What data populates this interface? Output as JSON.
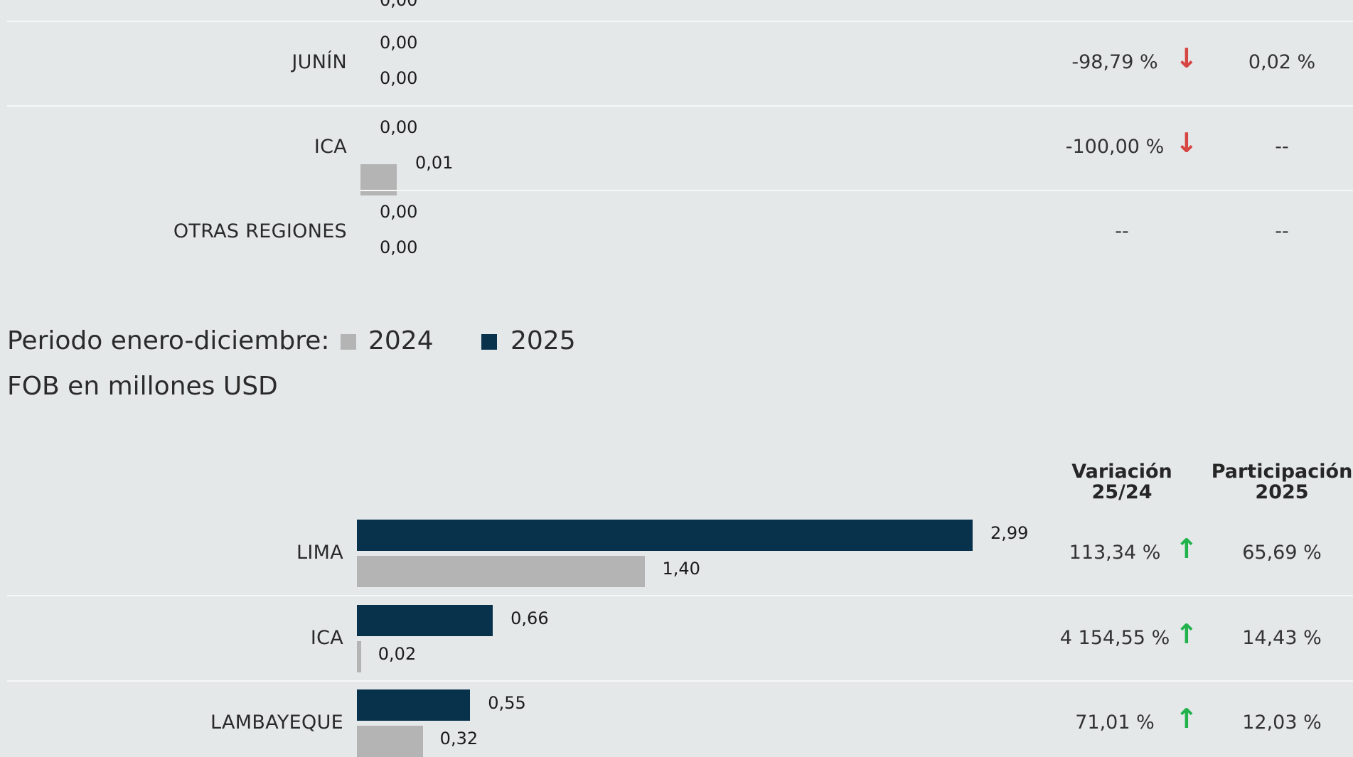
{
  "chart_data": [
    {
      "type": "bar",
      "orientation": "horizontal",
      "categories": [
        "JUNÍN",
        "ICA",
        "OTRAS REGIONES"
      ],
      "series": [
        {
          "name": "2025",
          "values": [
            0.0,
            0.0,
            0.0
          ],
          "labels": [
            "0,00",
            "0,00",
            "0,00"
          ]
        },
        {
          "name": "2024",
          "values": [
            0.0,
            0.01,
            0.0
          ],
          "labels": [
            "0,00",
            "0,01",
            "0,00"
          ]
        }
      ],
      "variation": [
        {
          "text": "-98,79 %",
          "direction": "down"
        },
        {
          "text": "-100,00 %",
          "direction": "down"
        },
        {
          "text": "--",
          "direction": ""
        }
      ],
      "share_2025": [
        "0,02 %",
        "--",
        "--"
      ],
      "cut_top_label": "0,00"
    },
    {
      "type": "bar",
      "orientation": "horizontal",
      "legend": {
        "prefix": "Periodo enero-diciembre:",
        "items": [
          {
            "label": "2024",
            "color": "#b4b4b4"
          },
          {
            "label": "2025",
            "color": "#08324c"
          }
        ]
      },
      "unit_label": "FOB en millones USD",
      "column_headers": {
        "variation": [
          "Variación",
          "25/24"
        ],
        "share": [
          "Participación",
          "2025"
        ]
      },
      "categories": [
        "LIMA",
        "ICA",
        "LAMBAYEQUE"
      ],
      "series": [
        {
          "name": "2025",
          "values": [
            2.99,
            0.66,
            0.55
          ],
          "labels": [
            "2,99",
            "0,66",
            "0,55"
          ]
        },
        {
          "name": "2024",
          "values": [
            1.4,
            0.02,
            0.32
          ],
          "labels": [
            "1,40",
            "0,02",
            "0,32"
          ]
        }
      ],
      "variation": [
        {
          "text": "113,34 %",
          "direction": "up"
        },
        {
          "text": "4 154,55 %",
          "direction": "up"
        },
        {
          "text": "71,01 %",
          "direction": "up"
        }
      ],
      "share_2025": [
        "65,69 %",
        "14,43 %",
        "12,03 %"
      ],
      "xlim": [
        0,
        2.99
      ]
    }
  ],
  "colors": {
    "y2024": "#b4b4b4",
    "y2025": "#08324c",
    "down": "#d64541",
    "up": "#22b24c"
  },
  "icons": {
    "down": "arrow-down-icon",
    "up": "arrow-up-icon"
  }
}
